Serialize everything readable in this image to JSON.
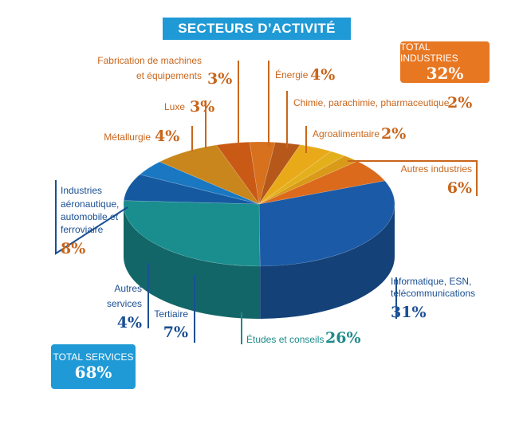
{
  "title": "SECTEURS D’ACTIVITÉ",
  "totals": {
    "industries": {
      "label": "TOTAL INDUSTRIES",
      "value": "32%"
    },
    "services": {
      "label": "TOTAL SERVICES",
      "value": "68%"
    }
  },
  "colors": {
    "title_bg": "#1f9ad6",
    "industries": "#e87722",
    "services": "#1f9ad6",
    "industry_text": "#c8661c",
    "service_text": "#1a4f93",
    "teal_text": "#1d8a8a"
  },
  "chart_data": {
    "type": "pie",
    "style": "3d",
    "slices": [
      {
        "label": "Informatique, ESN, télécommunications",
        "value": 31,
        "pct": "31%",
        "color": "#1b5aa6"
      },
      {
        "label": "Études et conseils",
        "value": 26,
        "pct": "26%",
        "color": "#1a8e8f"
      },
      {
        "label": "Tertiaire",
        "value": 7,
        "pct": "7%",
        "color": "#155aa0"
      },
      {
        "label": "Autres services",
        "value": 4,
        "pct": "4%",
        "color": "#1a78c2"
      },
      {
        "label": "Industries aéronautique, automobile et ferroviaire",
        "value": 8,
        "pct": "8%",
        "color": "#c9861c"
      },
      {
        "label": "Métallurgie",
        "value": 4,
        "pct": "4%",
        "color": "#c95a16"
      },
      {
        "label": "Luxe",
        "value": 3,
        "pct": "3%",
        "color": "#d7711e"
      },
      {
        "label": "Fabrication de machines et équipements",
        "value": 3,
        "pct": "3%",
        "color": "#b5581a"
      },
      {
        "label": "Énergie",
        "value": 4,
        "pct": "4%",
        "color": "#e9aa1a"
      },
      {
        "label": "Chimie, parachimie, pharmaceutique",
        "value": 2,
        "pct": "2%",
        "color": "#e3b01c"
      },
      {
        "label": "Agroalimentaire",
        "value": 2,
        "pct": "2%",
        "color": "#d99a18"
      },
      {
        "label": "Autres industries",
        "value": 6,
        "pct": "6%",
        "color": "#db6a1d"
      }
    ]
  }
}
